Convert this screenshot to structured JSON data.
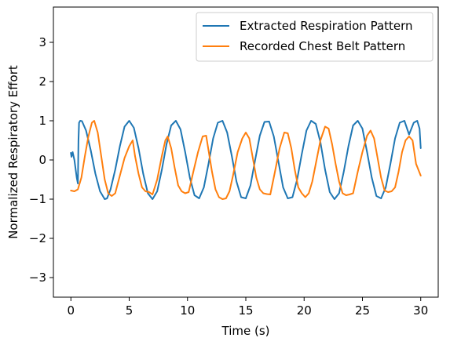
{
  "chart_data": {
    "type": "line",
    "xlabel": "Time (s)",
    "ylabel": "Normalized Respiratory Effort",
    "xlim": [
      -1.5,
      31.5
    ],
    "ylim": [
      -3.5,
      3.9
    ],
    "xticks": [
      0,
      5,
      10,
      15,
      20,
      25,
      30
    ],
    "xtick_labels": [
      "0",
      "5",
      "10",
      "15",
      "20",
      "25",
      "30"
    ],
    "yticks": [
      -3,
      -2,
      -1,
      0,
      1,
      2,
      3
    ],
    "ytick_labels": [
      "−3",
      "−2",
      "−1",
      "0",
      "1",
      "2",
      "3"
    ],
    "grid": false,
    "legend_position": "top-right",
    "series": [
      {
        "name": "Extracted Respiration Pattern",
        "color": "#1f77b4",
        "x": [
          0,
          0.05,
          0.15,
          0.3,
          0.5,
          0.6,
          0.65,
          0.7,
          0.8,
          0.95,
          1.3,
          1.7,
          2.1,
          2.5,
          2.9,
          3.1,
          3.4,
          3.8,
          4.2,
          4.6,
          5.0,
          5.4,
          5.8,
          6.2,
          6.6,
          7.0,
          7.4,
          7.8,
          8.2,
          8.6,
          9.0,
          9.4,
          9.8,
          10.2,
          10.6,
          11.0,
          11.4,
          11.8,
          12.2,
          12.6,
          13.0,
          13.4,
          13.8,
          14.2,
          14.6,
          15.0,
          15.4,
          15.8,
          16.2,
          16.6,
          17.0,
          17.4,
          17.8,
          18.2,
          18.6,
          19.0,
          19.4,
          19.8,
          20.2,
          20.6,
          21.0,
          21.4,
          21.8,
          22.2,
          22.6,
          23.0,
          23.4,
          23.8,
          24.2,
          24.6,
          25.0,
          25.4,
          25.8,
          26.2,
          26.6,
          27.0,
          27.4,
          27.8,
          28.2,
          28.6,
          29.0,
          29.4,
          29.7,
          29.9,
          30.0
        ],
        "y": [
          0.18,
          0.08,
          0.2,
          0.0,
          -0.45,
          -0.6,
          0.5,
          0.95,
          1.0,
          0.99,
          0.75,
          0.25,
          -0.35,
          -0.8,
          -1.0,
          -0.98,
          -0.75,
          -0.25,
          0.35,
          0.85,
          1.0,
          0.82,
          0.3,
          -0.35,
          -0.85,
          -1.0,
          -0.8,
          -0.25,
          0.4,
          0.88,
          1.0,
          0.78,
          0.2,
          -0.45,
          -0.9,
          -0.98,
          -0.7,
          -0.1,
          0.55,
          0.95,
          1.0,
          0.7,
          0.1,
          -0.55,
          -0.95,
          -0.98,
          -0.65,
          0.0,
          0.62,
          0.97,
          0.98,
          0.6,
          -0.05,
          -0.7,
          -0.98,
          -0.95,
          -0.5,
          0.15,
          0.75,
          1.0,
          0.92,
          0.45,
          -0.25,
          -0.82,
          -1.0,
          -0.85,
          -0.3,
          0.35,
          0.88,
          1.0,
          0.8,
          0.2,
          -0.45,
          -0.92,
          -0.98,
          -0.7,
          -0.1,
          0.55,
          0.95,
          1.0,
          0.65,
          0.95,
          1.0,
          0.8,
          0.3
        ]
      },
      {
        "name": "Recorded Chest Belt Pattern",
        "color": "#ff7f0e",
        "x": [
          0,
          0.3,
          0.6,
          0.9,
          1.2,
          1.5,
          1.8,
          2.0,
          2.3,
          2.6,
          2.9,
          3.2,
          3.5,
          3.8,
          4.2,
          4.6,
          5.0,
          5.3,
          5.5,
          5.8,
          6.1,
          6.4,
          6.7,
          7.0,
          7.4,
          7.8,
          8.1,
          8.3,
          8.6,
          8.9,
          9.2,
          9.5,
          9.8,
          10.1,
          10.5,
          10.9,
          11.3,
          11.6,
          11.8,
          12.1,
          12.4,
          12.7,
          13.0,
          13.3,
          13.6,
          13.9,
          14.3,
          14.7,
          15.0,
          15.3,
          15.6,
          15.9,
          16.2,
          16.5,
          16.8,
          17.1,
          17.5,
          17.9,
          18.3,
          18.6,
          18.9,
          19.2,
          19.5,
          19.8,
          20.1,
          20.4,
          20.7,
          21.0,
          21.4,
          21.8,
          22.1,
          22.4,
          22.7,
          23.0,
          23.3,
          23.6,
          23.9,
          24.2,
          24.6,
          25.0,
          25.4,
          25.7,
          26.0,
          26.3,
          26.6,
          26.9,
          27.2,
          27.5,
          27.8,
          28.1,
          28.4,
          28.7,
          29.0,
          29.3,
          29.6,
          30.0
        ],
        "y": [
          -0.78,
          -0.8,
          -0.75,
          -0.45,
          0.1,
          0.6,
          0.95,
          1.0,
          0.7,
          0.1,
          -0.5,
          -0.85,
          -0.92,
          -0.85,
          -0.4,
          0.05,
          0.35,
          0.5,
          0.1,
          -0.35,
          -0.7,
          -0.8,
          -0.82,
          -0.88,
          -0.5,
          0.1,
          0.5,
          0.6,
          0.3,
          -0.2,
          -0.65,
          -0.8,
          -0.85,
          -0.82,
          -0.3,
          0.2,
          0.6,
          0.62,
          0.25,
          -0.3,
          -0.75,
          -0.95,
          -1.0,
          -0.98,
          -0.8,
          -0.4,
          0.2,
          0.55,
          0.7,
          0.55,
          0.05,
          -0.45,
          -0.75,
          -0.85,
          -0.87,
          -0.88,
          -0.3,
          0.3,
          0.7,
          0.68,
          0.3,
          -0.25,
          -0.7,
          -0.85,
          -0.95,
          -0.85,
          -0.55,
          -0.1,
          0.5,
          0.85,
          0.8,
          0.4,
          -0.1,
          -0.55,
          -0.85,
          -0.9,
          -0.88,
          -0.85,
          -0.3,
          0.2,
          0.62,
          0.75,
          0.55,
          0.05,
          -0.45,
          -0.78,
          -0.82,
          -0.8,
          -0.7,
          -0.3,
          0.2,
          0.5,
          0.6,
          0.5,
          -0.1,
          -0.4
        ]
      }
    ]
  }
}
